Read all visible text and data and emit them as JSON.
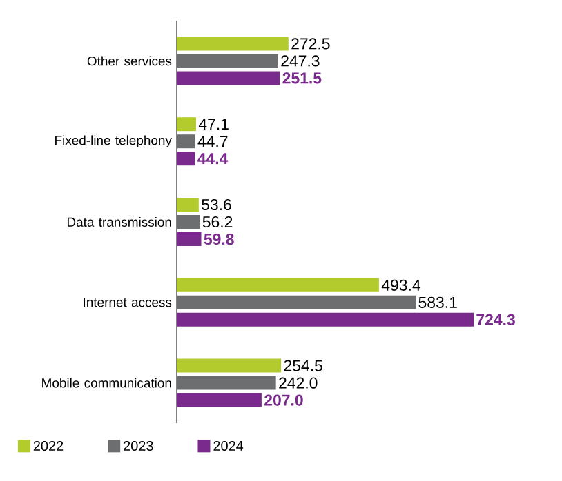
{
  "chart_data": {
    "type": "bar",
    "orientation": "horizontal",
    "categories": [
      "Other services",
      "Fixed-line telephony",
      "Data transmission",
      "Internet access",
      "Mobile communication"
    ],
    "series": [
      {
        "name": "2022",
        "color": "#b3cb2d",
        "values": [
          272.5,
          47.1,
          53.6,
          493.4,
          254.5
        ],
        "value_labels": [
          "272.5",
          "47.1",
          "53.6",
          "493.4",
          "254.5"
        ]
      },
      {
        "name": "2023",
        "color": "#6d6e70",
        "values": [
          247.3,
          44.7,
          56.2,
          583.1,
          242.0
        ],
        "value_labels": [
          "247.3",
          "44.7",
          "56.2",
          "583.1",
          "242.0"
        ]
      },
      {
        "name": "2024",
        "color": "#7a2a8c",
        "values": [
          251.5,
          44.4,
          59.8,
          724.3,
          207.0
        ],
        "value_labels": [
          "251.5",
          "44.4",
          "59.8",
          "724.3",
          "207.0"
        ]
      }
    ],
    "legend": "bottom"
  }
}
